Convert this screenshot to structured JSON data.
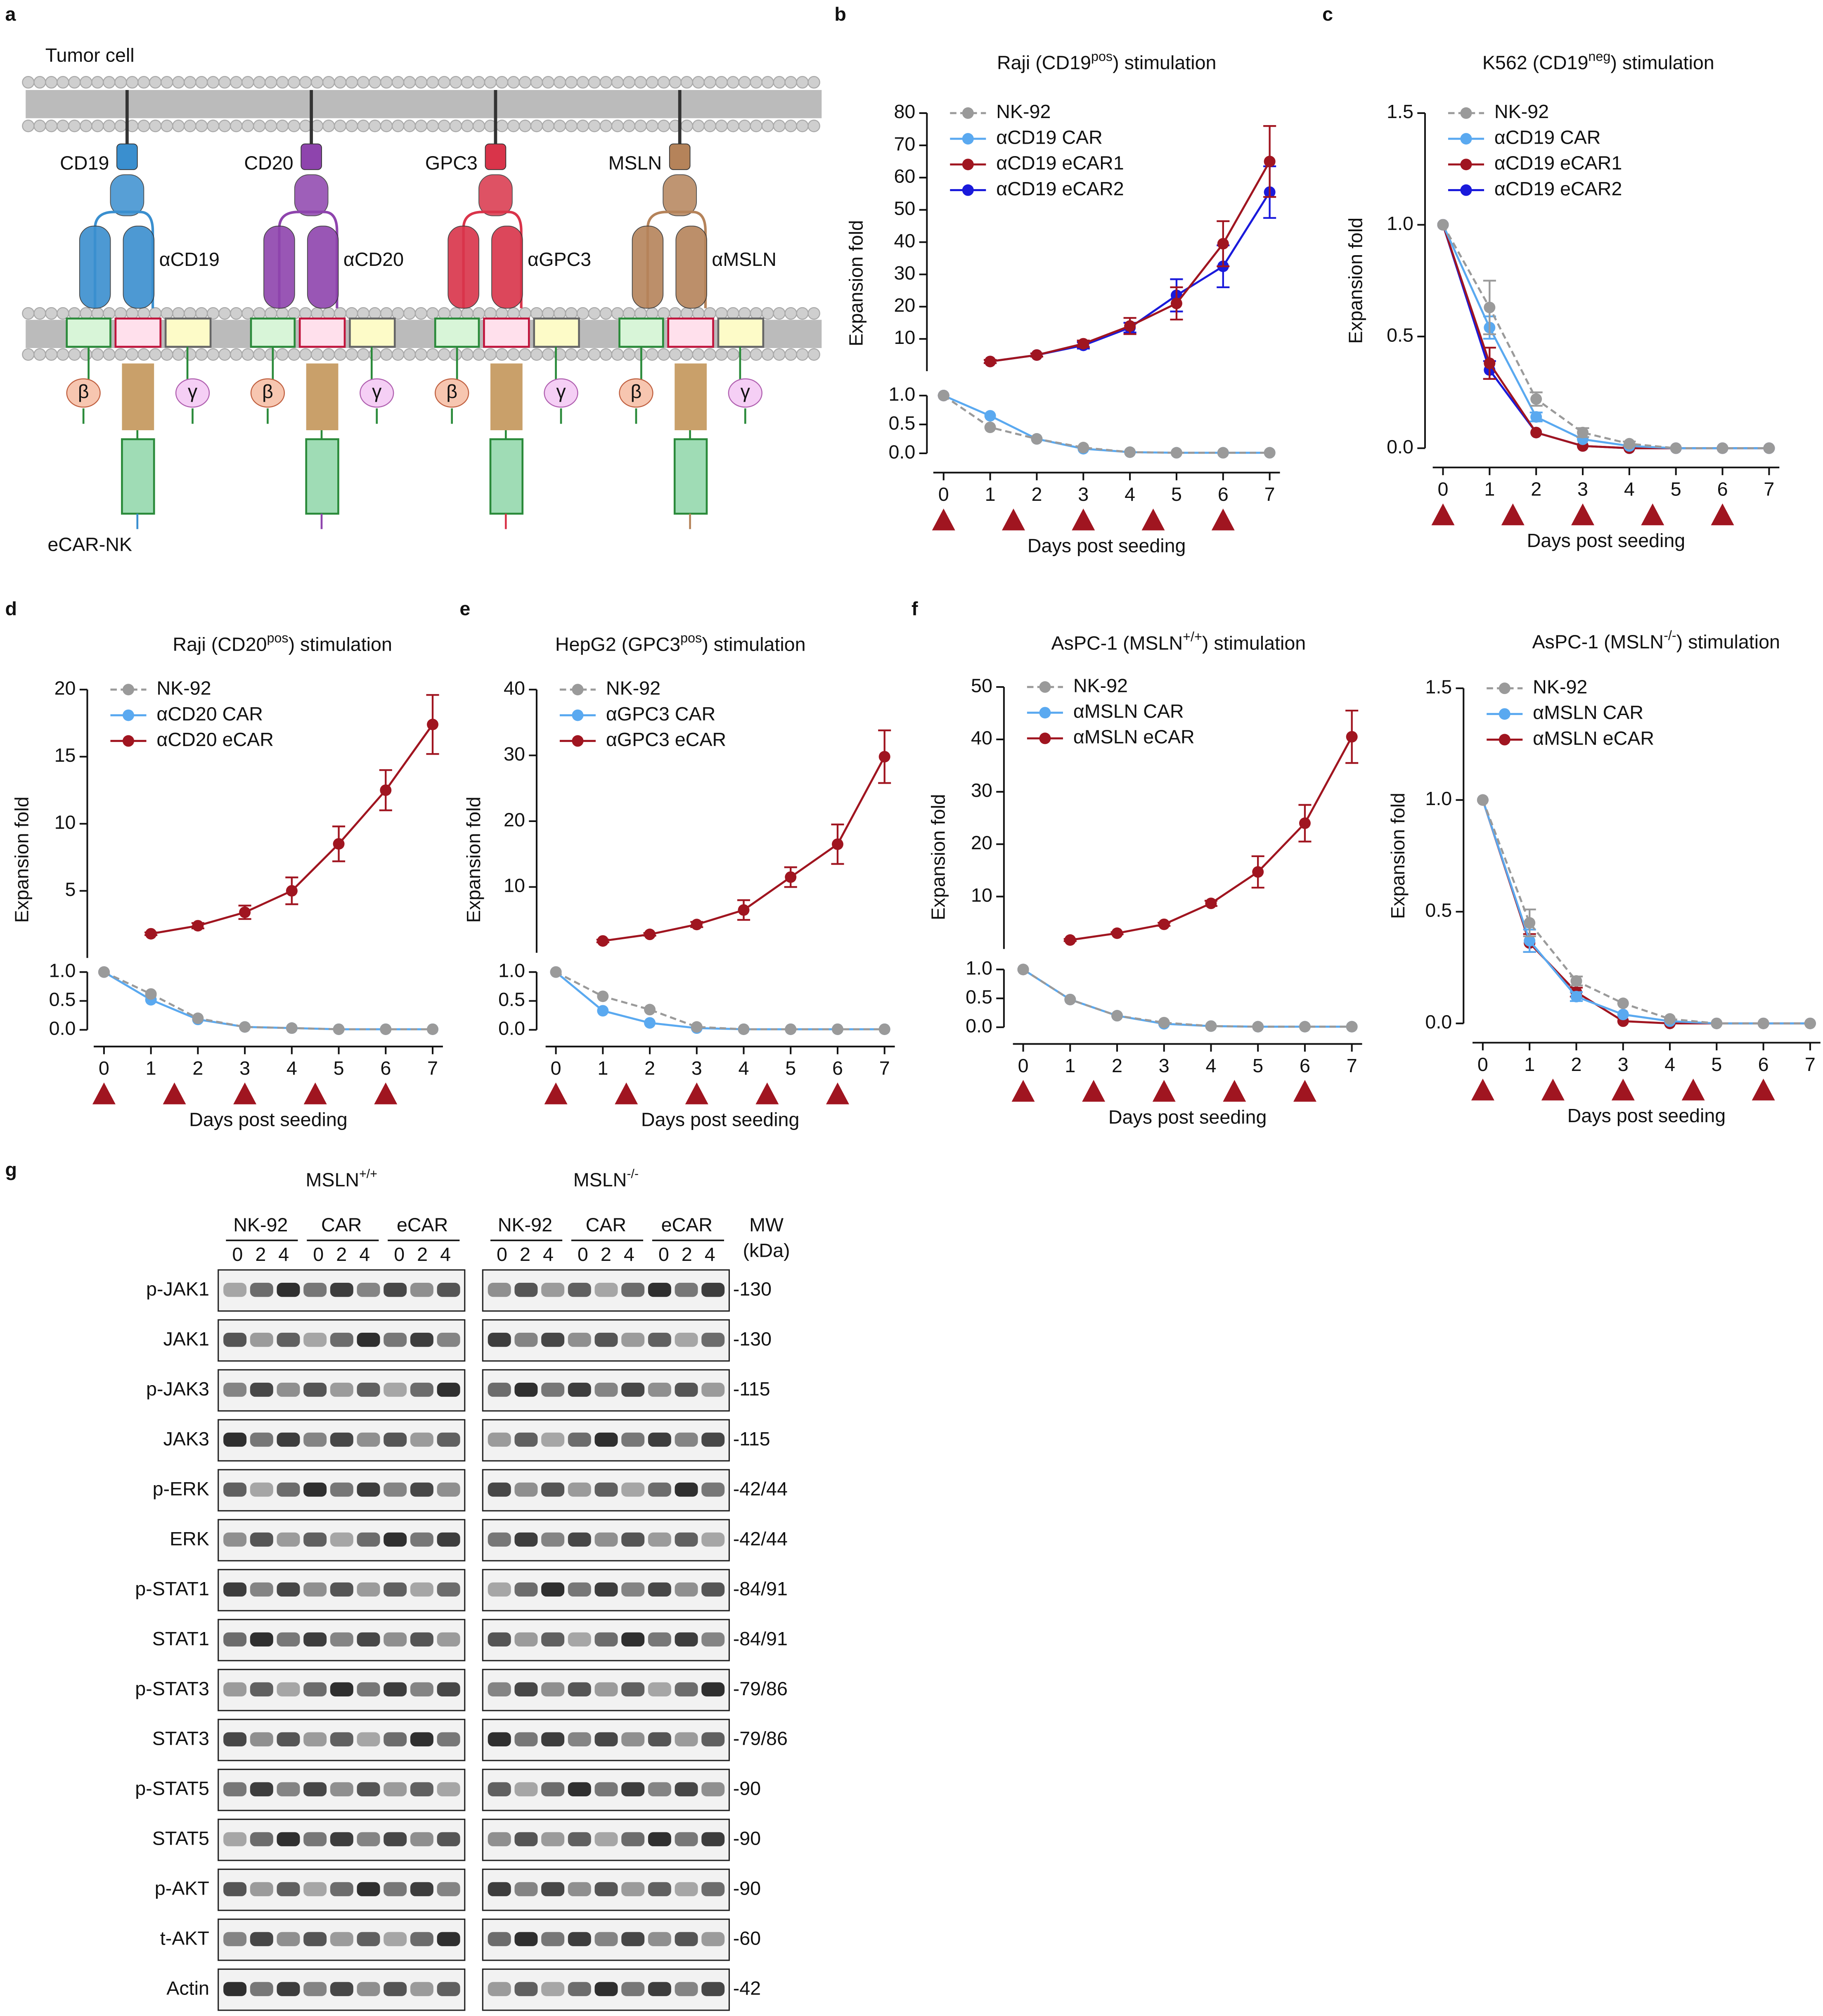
{
  "diagram": {
    "panel": "a",
    "title_top": "Tumor cell",
    "title_bottom": "eCAR-NK",
    "beta": "β",
    "gamma": "γ",
    "constructs": [
      {
        "antigen": "CD19",
        "binder": "αCD19",
        "color": "#3a8fcf"
      },
      {
        "antigen": "CD20",
        "binder": "αCD20",
        "color": "#8e44ad"
      },
      {
        "antigen": "GPC3",
        "binder": "αGPC3",
        "color": "#d9344a"
      },
      {
        "antigen": "MSLN",
        "binder": "αMSLN",
        "color": "#b5835a"
      }
    ]
  },
  "chart_data": [
    {
      "type": "line",
      "panel": "b",
      "title": {
        "text": "Raji (CD19",
        "sup": "pos",
        "tail": ") stimulation"
      },
      "ylabel": "Expansion fold",
      "xlabel": "Days post seeding",
      "x": [
        0,
        1,
        2,
        3,
        4,
        5,
        6,
        7
      ],
      "xlim": [
        0,
        7
      ],
      "xticks": [
        0,
        1,
        2,
        3,
        4,
        5,
        6,
        7
      ],
      "ylim": [
        0,
        80
      ],
      "yticks": [
        10,
        20,
        30,
        40,
        50,
        60,
        70,
        80
      ],
      "lower_ylim": [
        0,
        1
      ],
      "lower_yticks": [
        {
          "value": 0,
          "label": "0.0"
        },
        0.5,
        {
          "value": 1,
          "label": "1.0"
        }
      ],
      "stim_days": [
        0,
        1.5,
        3,
        4.5,
        6
      ],
      "series": [
        {
          "name": "NK-92",
          "color": "#9a9a9a",
          "dashed": true,
          "values": [
            1,
            0.45,
            0.25,
            0.1,
            0.02,
            0.01,
            0.01,
            0.01
          ]
        },
        {
          "name": "αCD19 CAR",
          "color": "#5aa9f0",
          "values": [
            1,
            0.65,
            0.25,
            0.08,
            0.02,
            0.01,
            0.01,
            0.01
          ]
        },
        {
          "name": "αCD19 eCAR1",
          "color": "#a01520",
          "values": [
            1,
            3,
            5,
            8.5,
            14,
            21,
            39.5,
            65
          ],
          "errors": [
            null,
            0.5,
            0.5,
            1,
            2.5,
            5,
            7,
            11
          ]
        },
        {
          "name": "αCD19 eCAR2",
          "color": "#1a1adb",
          "values": [
            1,
            3,
            5,
            8,
            13.5,
            23.5,
            32.5,
            55.5
          ],
          "errors": [
            null,
            0.5,
            0.5,
            1,
            1.5,
            5,
            6.5,
            8
          ]
        }
      ]
    },
    {
      "type": "line",
      "panel": "c",
      "title": {
        "text": "K562 (CD19",
        "sup": "neg",
        "tail": ") stimulation"
      },
      "ylabel": "Expansion fold",
      "xlabel": "Days post seeding",
      "x": [
        0,
        1,
        2,
        3,
        4,
        5,
        6,
        7
      ],
      "xlim": [
        0,
        7
      ],
      "xticks": [
        0,
        1,
        2,
        3,
        4,
        5,
        6,
        7
      ],
      "ylim": [
        0,
        1.5
      ],
      "yticks": [
        {
          "value": 0,
          "label": "0.0"
        },
        0.5,
        {
          "value": 1,
          "label": "1.0"
        },
        1.5
      ],
      "stim_days": [
        0,
        1.5,
        3,
        4.5,
        6
      ],
      "series": [
        {
          "name": "NK-92",
          "color": "#9a9a9a",
          "dashed": true,
          "values": [
            1,
            0.63,
            0.22,
            0.07,
            0.02,
            0,
            0,
            0
          ],
          "errors": [
            null,
            0.12,
            0.03,
            0.02,
            0.01,
            null,
            null,
            null
          ]
        },
        {
          "name": "αCD19 CAR",
          "color": "#5aa9f0",
          "values": [
            1,
            0.54,
            0.14,
            0.04,
            0.01,
            0,
            0,
            0
          ],
          "errors": [
            null,
            0.05,
            0.02,
            null,
            null,
            null,
            null,
            null
          ]
        },
        {
          "name": "αCD19 eCAR1",
          "color": "#a01520",
          "values": [
            1,
            0.38,
            0.07,
            0.01,
            0,
            0,
            0,
            0
          ],
          "errors": [
            null,
            0.07,
            null,
            null,
            null,
            null,
            null,
            null
          ]
        },
        {
          "name": "αCD19 eCAR2",
          "color": "#1a1adb",
          "values": [
            1,
            0.35,
            0.07,
            0.01,
            0,
            0,
            0,
            0
          ],
          "errors": [
            null,
            0.04,
            null,
            null,
            null,
            null,
            null,
            null
          ]
        }
      ]
    },
    {
      "type": "line",
      "panel": "d",
      "title": {
        "text": "Raji (CD20",
        "sup": "pos",
        "tail": ") stimulation"
      },
      "ylabel": "Expansion fold",
      "xlabel": "Days post seeding",
      "x": [
        0,
        1,
        2,
        3,
        4,
        5,
        6,
        7
      ],
      "xlim": [
        0,
        7
      ],
      "xticks": [
        0,
        1,
        2,
        3,
        4,
        5,
        6,
        7
      ],
      "ylim": [
        0,
        20
      ],
      "yticks": [
        5,
        10,
        15,
        20
      ],
      "lower_ylim": [
        0,
        1
      ],
      "lower_yticks": [
        {
          "value": 0,
          "label": "0.0"
        },
        0.5,
        {
          "value": 1,
          "label": "1.0"
        }
      ],
      "stim_days": [
        0,
        1.5,
        3,
        4.5,
        6
      ],
      "series": [
        {
          "name": "NK-92",
          "color": "#9a9a9a",
          "dashed": true,
          "values": [
            1,
            0.62,
            0.2,
            0.05,
            0.03,
            0.01,
            0.01,
            0.01
          ]
        },
        {
          "name": "αCD20 CAR",
          "color": "#5aa9f0",
          "values": [
            1,
            0.52,
            0.18,
            0.05,
            0.03,
            0.01,
            0.01,
            0.01
          ]
        },
        {
          "name": "αCD20 eCAR",
          "color": "#a01520",
          "values": [
            1,
            1.8,
            2.4,
            3.4,
            5,
            8.5,
            12.5,
            17.4
          ],
          "errors": [
            null,
            0.1,
            0.2,
            0.5,
            1,
            1.3,
            1.5,
            2.2
          ]
        }
      ]
    },
    {
      "type": "line",
      "panel": "e",
      "title": {
        "text": "HepG2 (GPC3",
        "sup": "pos",
        "tail": ") stimulation"
      },
      "ylabel": "Expansion fold",
      "xlabel": "Days post seeding",
      "x": [
        0,
        1,
        2,
        3,
        4,
        5,
        6,
        7
      ],
      "xlim": [
        0,
        7
      ],
      "xticks": [
        0,
        1,
        2,
        3,
        4,
        5,
        6,
        7
      ],
      "ylim": [
        0,
        40
      ],
      "yticks": [
        10,
        20,
        30,
        40
      ],
      "lower_ylim": [
        0,
        1
      ],
      "lower_yticks": [
        {
          "value": 0,
          "label": "0.0"
        },
        0.5,
        {
          "value": 1,
          "label": "1.0"
        }
      ],
      "stim_days": [
        0,
        1.5,
        3,
        4.5,
        6
      ],
      "series": [
        {
          "name": "NK-92",
          "color": "#9a9a9a",
          "dashed": true,
          "values": [
            1,
            0.58,
            0.35,
            0.05,
            0.01,
            0.01,
            0.01,
            0.01
          ]
        },
        {
          "name": "αGPC3 CAR",
          "color": "#5aa9f0",
          "values": [
            1,
            0.33,
            0.12,
            0.03,
            0.01,
            0.01,
            0.01,
            0.01
          ]
        },
        {
          "name": "αGPC3 eCAR",
          "color": "#a01520",
          "values": [
            1,
            1.8,
            2.8,
            4.3,
            6.5,
            11.5,
            16.5,
            29.8
          ],
          "errors": [
            null,
            0.2,
            0.2,
            0.4,
            1.5,
            1.5,
            3,
            4
          ]
        }
      ]
    },
    {
      "type": "line",
      "panel": "f",
      "title": {
        "text": "AsPC-1 (MSLN",
        "sup": "+/+",
        "tail": ") stimulation"
      },
      "ylabel": "Expansion fold",
      "xlabel": "Days post seeding",
      "x": [
        0,
        1,
        2,
        3,
        4,
        5,
        6,
        7
      ],
      "xlim": [
        0,
        7
      ],
      "xticks": [
        0,
        1,
        2,
        3,
        4,
        5,
        6,
        7
      ],
      "ylim": [
        0,
        50
      ],
      "yticks": [
        10,
        20,
        30,
        40,
        50
      ],
      "lower_ylim": [
        0,
        1
      ],
      "lower_yticks": [
        {
          "value": 0,
          "label": "0.0"
        },
        0.5,
        {
          "value": 1,
          "label": "1.0"
        }
      ],
      "stim_days": [
        0,
        1.5,
        3,
        4.5,
        6
      ],
      "series": [
        {
          "name": "NK-92",
          "color": "#9a9a9a",
          "dashed": true,
          "values": [
            1,
            0.48,
            0.2,
            0.08,
            0.02,
            0.01,
            0.01,
            0.01
          ]
        },
        {
          "name": "αMSLN CAR",
          "color": "#5aa9f0",
          "values": [
            1,
            0.48,
            0.2,
            0.06,
            0.02,
            0.01,
            0.01,
            0.01
          ]
        },
        {
          "name": "αMSLN eCAR",
          "color": "#a01520",
          "values": [
            1,
            1.7,
            3,
            4.7,
            8.7,
            14.7,
            24,
            40.5
          ],
          "errors": [
            null,
            0.2,
            0.2,
            0.3,
            0.5,
            3,
            3.5,
            5
          ]
        }
      ]
    },
    {
      "type": "line",
      "title": {
        "text": "AsPC-1 (MSLN",
        "sup": "-/-",
        "tail": ") stimulation"
      },
      "ylabel": "Expansion fold",
      "xlabel": "Days post seeding",
      "x": [
        0,
        1,
        2,
        3,
        4,
        5,
        6,
        7
      ],
      "xlim": [
        0,
        7
      ],
      "xticks": [
        0,
        1,
        2,
        3,
        4,
        5,
        6,
        7
      ],
      "ylim": [
        0,
        1.5
      ],
      "yticks": [
        {
          "value": 0,
          "label": "0.0"
        },
        0.5,
        {
          "value": 1,
          "label": "1.0"
        },
        1.5
      ],
      "stim_days": [
        0,
        1.5,
        3,
        4.5,
        6
      ],
      "series": [
        {
          "name": "NK-92",
          "color": "#9a9a9a",
          "dashed": true,
          "values": [
            1,
            0.45,
            0.19,
            0.09,
            0.02,
            0,
            0,
            0
          ],
          "errors": [
            null,
            0.06,
            0.02,
            null,
            null,
            null,
            null,
            null
          ]
        },
        {
          "name": "αMSLN CAR",
          "color": "#5aa9f0",
          "values": [
            1,
            0.37,
            0.12,
            0.04,
            0.01,
            0,
            0,
            0
          ],
          "errors": [
            null,
            0.05,
            0.02,
            null,
            null,
            null,
            null,
            null
          ]
        },
        {
          "name": "αMSLN eCAR",
          "color": "#a01520",
          "values": [
            1,
            0.36,
            0.14,
            0.01,
            0,
            0,
            0,
            0
          ],
          "errors": [
            null,
            0.04,
            0.02,
            null,
            null,
            null,
            null,
            null
          ]
        }
      ]
    }
  ],
  "blot": {
    "panel": "g",
    "headers": [
      {
        "text": "MSLN",
        "sup": "+/+"
      },
      {
        "text": "MSLN",
        "sup": "-/-"
      }
    ],
    "groups": [
      "NK-92",
      "CAR",
      "eCAR"
    ],
    "days": [
      "0",
      "2",
      "4"
    ],
    "mw_header": [
      "MW",
      "(kDa)"
    ],
    "rows": [
      {
        "protein": "p-JAK1",
        "mw": "-130"
      },
      {
        "protein": "JAK1",
        "mw": "-130"
      },
      {
        "protein": "p-JAK3",
        "mw": "-115"
      },
      {
        "protein": "JAK3",
        "mw": "-115"
      },
      {
        "protein": "p-ERK",
        "mw": "-42/44"
      },
      {
        "protein": "ERK",
        "mw": "-42/44"
      },
      {
        "protein": "p-STAT1",
        "mw": "-84/91"
      },
      {
        "protein": "STAT1",
        "mw": "-84/91"
      },
      {
        "protein": "p-STAT3",
        "mw": "-79/86"
      },
      {
        "protein": "STAT3",
        "mw": "-79/86"
      },
      {
        "protein": "p-STAT5",
        "mw": "-90"
      },
      {
        "protein": "STAT5",
        "mw": "-90"
      },
      {
        "protein": "p-AKT",
        "mw": "-90"
      },
      {
        "protein": "t-AKT",
        "mw": "-60"
      },
      {
        "protein": "Actin",
        "mw": "-42"
      }
    ]
  }
}
